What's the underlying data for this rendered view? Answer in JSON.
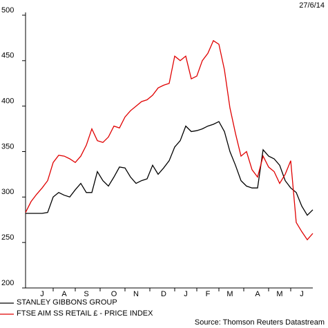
{
  "chart_data": {
    "type": "line",
    "date": "27/6/14",
    "source": "Source: Thomson Reuters Datastream",
    "categories": [
      null,
      null,
      null,
      "J",
      null,
      null,
      null,
      "A",
      null,
      null,
      null,
      "S",
      null,
      null,
      null,
      null,
      "O",
      null,
      null,
      null,
      "N",
      null,
      null,
      null,
      null,
      "D",
      null,
      null,
      null,
      "J",
      null,
      null,
      null,
      "F",
      null,
      null,
      null,
      "M",
      null,
      null,
      null,
      null,
      "A",
      null,
      null,
      null,
      "M",
      null,
      null,
      null,
      "J",
      null,
      null
    ],
    "series": [
      {
        "name": "STANLEY GIBBONS GROUP",
        "color": "#000000",
        "values": [
          282,
          282,
          282,
          282,
          283,
          300,
          305,
          302,
          300,
          308,
          315,
          305,
          305,
          328,
          318,
          312,
          322,
          333,
          332,
          322,
          315,
          318,
          320,
          335,
          325,
          332,
          340,
          355,
          362,
          378,
          372,
          373,
          375,
          378,
          380,
          383,
          372,
          350,
          335,
          318,
          312,
          310,
          310,
          352,
          345,
          342,
          335,
          318,
          310,
          305,
          290,
          280,
          286
        ]
      },
      {
        "name": "FTSE AIM SS RETAIL £ - PRICE INDEX",
        "color": "#e00000",
        "values": [
          283,
          295,
          303,
          310,
          318,
          338,
          346,
          345,
          342,
          338,
          345,
          357,
          375,
          362,
          360,
          366,
          378,
          376,
          388,
          395,
          400,
          405,
          407,
          412,
          420,
          423,
          425,
          455,
          450,
          455,
          430,
          433,
          450,
          458,
          472,
          468,
          440,
          398,
          370,
          345,
          350,
          330,
          322,
          345,
          333,
          328,
          315,
          325,
          340,
          272,
          262,
          253,
          260
        ]
      }
    ],
    "ylim": [
      200,
      500
    ],
    "yticks": [
      200,
      250,
      300,
      350,
      400,
      450,
      500
    ]
  }
}
